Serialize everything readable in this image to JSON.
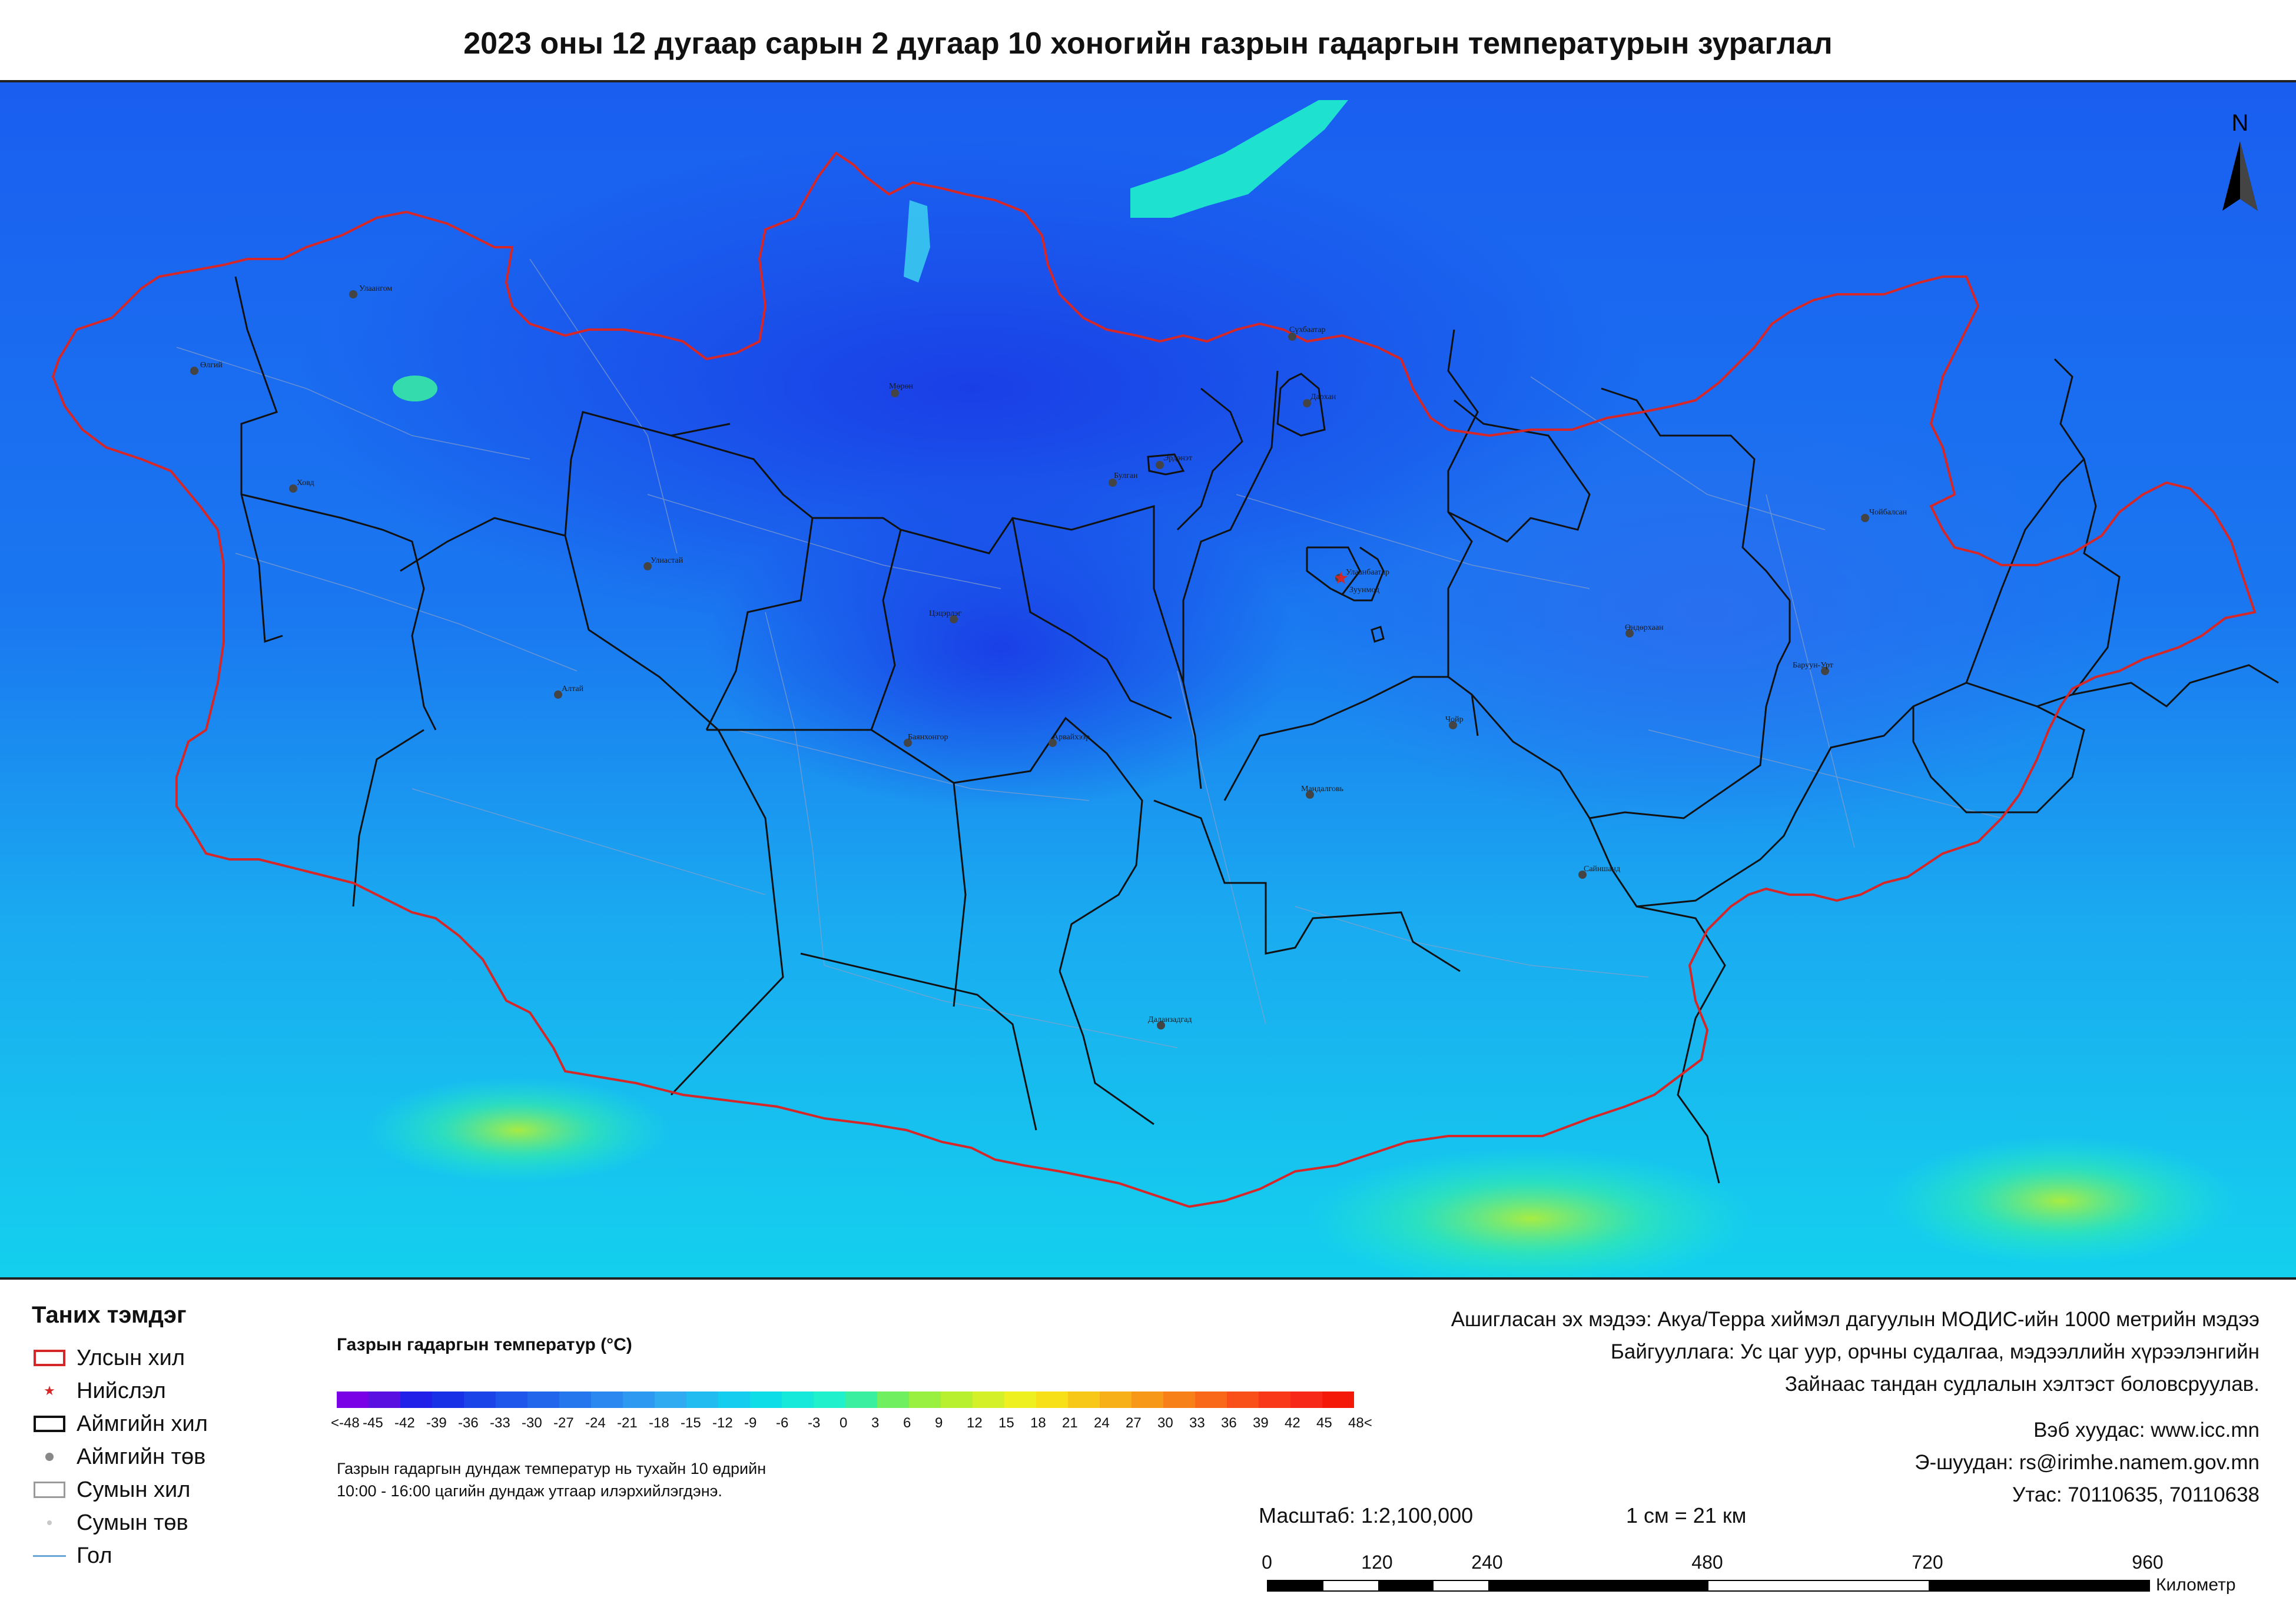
{
  "title": "2023 оны 12 дугаар сарын 2 дугаар 10 хоногийн газрын гадаргын температурын зураглал",
  "north_label": "N",
  "map": {
    "place_labels": [
      {
        "name": "Өлгий"
      },
      {
        "name": "Улаангом"
      },
      {
        "name": "Ховд"
      },
      {
        "name": "Улиастай"
      },
      {
        "name": "Алтай"
      },
      {
        "name": "Мөрөн"
      },
      {
        "name": "Булган"
      },
      {
        "name": "Эрдэнэт"
      },
      {
        "name": "Сүхбаатар"
      },
      {
        "name": "Дархан"
      },
      {
        "name": "Улаанбаатар"
      },
      {
        "name": "Зуунмод"
      },
      {
        "name": "Цэцэрлэг"
      },
      {
        "name": "Баянхонгор"
      },
      {
        "name": "Арвайхээр"
      },
      {
        "name": "Мандалговь"
      },
      {
        "name": "Чойр"
      },
      {
        "name": "Өндөрхаан"
      },
      {
        "name": "Чойбалсан"
      },
      {
        "name": "Баруун-Урт"
      },
      {
        "name": "Сайншанд"
      },
      {
        "name": "Даланзадгад"
      }
    ]
  },
  "legend": {
    "title": "Таних тэмдэг",
    "items": [
      {
        "label": "Улсын хил",
        "symbol": "country-border",
        "color": "#d62728"
      },
      {
        "label": "Нийслэл",
        "symbol": "capital-star",
        "color": "#d62728"
      },
      {
        "label": "Аймгийн хил",
        "symbol": "province-border",
        "color": "#111111"
      },
      {
        "label": "Аймгийн төв",
        "symbol": "province-center-dot",
        "color": "#888888"
      },
      {
        "label": "Сумын хил",
        "symbol": "district-border",
        "color": "#9a9a9a"
      },
      {
        "label": "Сумын төв",
        "symbol": "district-center-dot",
        "color": "#c8c8c8"
      },
      {
        "label": "Гол",
        "symbol": "river-line",
        "color": "#6aa6d8"
      }
    ]
  },
  "color_scale": {
    "title": "Газрын гадаргын температур (°C)",
    "tick_labels": [
      "<-48",
      "-45",
      "-42",
      "-39",
      "-36",
      "-33",
      "-30",
      "-27",
      "-24",
      "-21",
      "-18",
      "-15",
      "-12",
      "-9",
      "-6",
      "-3",
      "0",
      "3",
      "6",
      "9",
      "12",
      "15",
      "18",
      "21",
      "24",
      "27",
      "30",
      "33",
      "36",
      "39",
      "42",
      "45",
      "48<"
    ],
    "colors": [
      "#7a00e6",
      "#5a10e0",
      "#2020e8",
      "#1830e6",
      "#1a44e8",
      "#1e55ea",
      "#2266ec",
      "#2677ee",
      "#2a88f0",
      "#2e99f0",
      "#30aaf0",
      "#22bcf0",
      "#14cdef",
      "#0edde8",
      "#16e8da",
      "#20f0cc",
      "#3af0a0",
      "#70f060",
      "#9af040",
      "#b8f030",
      "#d4f028",
      "#eef020",
      "#f8e018",
      "#f8c818",
      "#f8b018",
      "#f89818",
      "#f88018",
      "#f86818",
      "#f85018",
      "#f83818",
      "#f82818",
      "#f41808"
    ],
    "note_line1": "Газрын гадаргын дундаж температур нь тухайн 10 өдрийн",
    "note_line2": "10:00 - 16:00 цагийн дундаж утгаар илэрхийлэгдэнэ."
  },
  "source": {
    "line1": "Ашигласан эх мэдээ: Акуа/Терра хиймэл дагуулын МОДИС-ийн 1000 метрийн мэдээ",
    "line2": "Байгууллага: Ус цаг уур, орчны судалгаа, мэдээллийн хүрээлэнгийн",
    "line3": "Зайнаас тандан судлалын хэлтэст боловсруулав."
  },
  "contact": {
    "web": "Вэб хуудас: www.icc.mn",
    "email": "Э-шуудан: rs@irimhe.namem.gov.mn",
    "phone": "Утас: 70110635, 70110638"
  },
  "scale": {
    "ratio": "Масштаб: 1:2,100,000",
    "equivalence": "1 см = 21 км",
    "tick_labels": [
      "0",
      "120",
      "240",
      "480",
      "720",
      "960"
    ],
    "unit": "Километр"
  }
}
